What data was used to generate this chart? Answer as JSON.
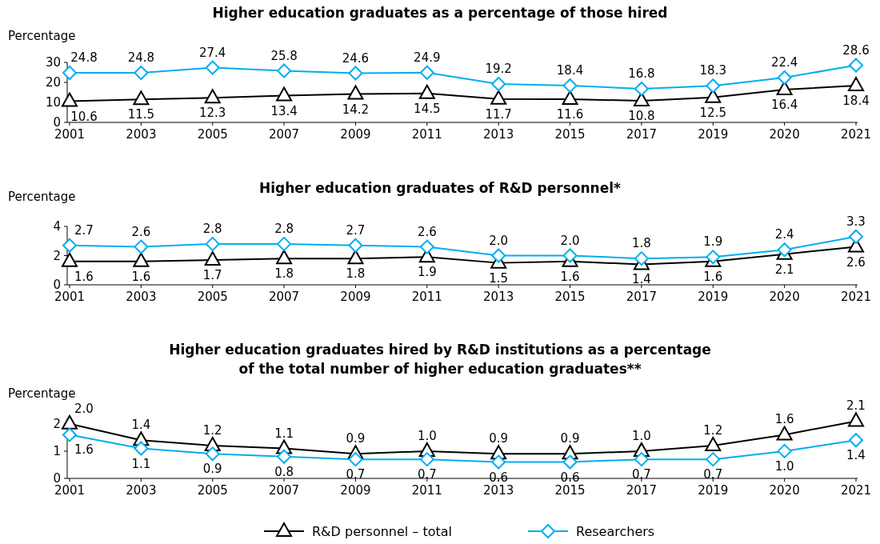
{
  "chart_data": [
    {
      "type": "line",
      "title": "Higher education graduates as a percentage of those hired",
      "ylabel": "Percentage",
      "categories": [
        "2001",
        "2003",
        "2005",
        "2007",
        "2009",
        "2011",
        "2013",
        "2015",
        "2017",
        "2019",
        "2020",
        "2021"
      ],
      "ylim": [
        0,
        30
      ],
      "yticks": [
        0,
        10,
        20,
        30
      ],
      "grid": false,
      "legend": false,
      "line_style": "solid",
      "series": [
        {
          "color": "#000000",
          "marker": "triangle",
          "values": [
            10.6,
            11.5,
            12.3,
            13.4,
            14.2,
            14.5,
            11.7,
            11.6,
            10.8,
            12.5,
            16.4,
            18.4
          ],
          "value_labels": [
            "10.6",
            "11.5",
            "12.3",
            "13.4",
            "14.2",
            "14.5",
            "11.7",
            "11.6",
            "10.8",
            "12.5",
            "16.4",
            "18.4"
          ]
        },
        {
          "color": "#00aeef",
          "marker": "diamond",
          "values": [
            24.8,
            24.8,
            27.4,
            25.8,
            24.6,
            24.9,
            19.2,
            18.4,
            16.8,
            18.3,
            22.4,
            28.6
          ],
          "value_labels": [
            "24.8",
            "24.8",
            "27.4",
            "25.8",
            "24.6",
            "24.9",
            "19.2",
            "18.4",
            "16.8",
            "18.3",
            "22.4",
            "28.6"
          ]
        }
      ]
    },
    {
      "type": "line",
      "title": "Higher education graduates of R&D personnel*",
      "ylabel": "Percentage",
      "categories": [
        "2001",
        "2003",
        "2005",
        "2007",
        "2009",
        "2011",
        "2013",
        "2015",
        "2017",
        "2019",
        "2020",
        "2021"
      ],
      "ylim": [
        0,
        4
      ],
      "yticks": [
        0,
        2,
        4
      ],
      "grid": false,
      "legend": false,
      "line_style": "solid",
      "series": [
        {
          "color": "#000000",
          "marker": "triangle",
          "values": [
            1.6,
            1.6,
            1.7,
            1.8,
            1.8,
            1.9,
            1.5,
            1.6,
            1.4,
            1.6,
            2.1,
            2.6
          ],
          "value_labels": [
            "1.6",
            "1.6",
            "1.7",
            "1.8",
            "1.8",
            "1.9",
            "1.5",
            "1.6",
            "1.4",
            "1.6",
            "2.1",
            "2.6"
          ]
        },
        {
          "color": "#00aeef",
          "marker": "diamond",
          "values": [
            2.7,
            2.6,
            2.8,
            2.8,
            2.7,
            2.6,
            2.0,
            2.0,
            1.8,
            1.9,
            2.4,
            3.3
          ],
          "value_labels": [
            "2.7",
            "2.6",
            "2.8",
            "2.8",
            "2.7",
            "2.6",
            "2.0",
            "2.0",
            "1.8",
            "1.9",
            "2.4",
            "3.3"
          ]
        }
      ]
    },
    {
      "type": "line",
      "title": "Higher education graduates hired by R&D institutions as a percentage\nof the total number of higher education graduates**",
      "ylabel": "Percentage",
      "categories": [
        "2001",
        "2003",
        "2005",
        "2007",
        "2009",
        "2011",
        "2013",
        "2015",
        "2017",
        "2019",
        "2020",
        "2021"
      ],
      "ylim": [
        0,
        2.2
      ],
      "yticks": [
        0,
        1,
        2
      ],
      "grid": false,
      "legend": "bottom",
      "line_style": "solid",
      "series": [
        {
          "name": "R&D personnel – total",
          "color": "#000000",
          "marker": "triangle",
          "values": [
            2.0,
            1.4,
            1.2,
            1.1,
            0.9,
            1.0,
            0.9,
            0.9,
            1.0,
            1.2,
            1.6,
            2.1
          ],
          "value_labels": [
            "2.0",
            "1.4",
            "1.2",
            "1.1",
            "0.9",
            "1.0",
            "0.9",
            "0.9",
            "1.0",
            "1.2",
            "1.6",
            "2.1"
          ]
        },
        {
          "name": "Researchers",
          "color": "#00aeef",
          "marker": "diamond",
          "values": [
            1.6,
            1.1,
            0.9,
            0.8,
            0.7,
            0.7,
            0.6,
            0.6,
            0.7,
            0.7,
            1.0,
            1.4
          ],
          "value_labels": [
            "1.6",
            "1.1",
            "0.9",
            "0.8",
            "0.7",
            "0.7",
            "0.6",
            "0.6",
            "0.7",
            "0.7",
            "1.0",
            "1.4"
          ]
        }
      ]
    }
  ]
}
